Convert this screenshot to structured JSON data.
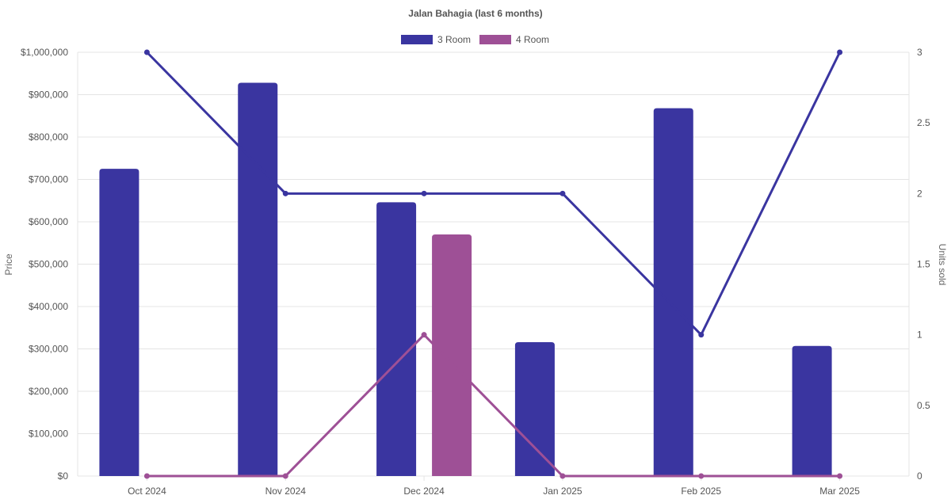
{
  "chart_data": {
    "type": "bar",
    "title": "Jalan Bahagia (last 6 months)",
    "categories": [
      "Oct 2024",
      "Nov 2024",
      "Dec 2024",
      "Jan 2025",
      "Feb 2025",
      "Mar 2025"
    ],
    "y_left": {
      "label": "Price",
      "range": [
        0,
        1000000
      ],
      "ticks": [
        {
          "value": 0,
          "label": "$0"
        },
        {
          "value": 100000,
          "label": "$100,000"
        },
        {
          "value": 200000,
          "label": "$200,000"
        },
        {
          "value": 300000,
          "label": "$300,000"
        },
        {
          "value": 400000,
          "label": "$400,000"
        },
        {
          "value": 500000,
          "label": "$500,000"
        },
        {
          "value": 600000,
          "label": "$600,000"
        },
        {
          "value": 700000,
          "label": "$700,000"
        },
        {
          "value": 800000,
          "label": "$800,000"
        },
        {
          "value": 900000,
          "label": "$900,000"
        },
        {
          "value": 1000000,
          "label": "$1,000,000"
        }
      ]
    },
    "y_right": {
      "label": "Units sold",
      "range": [
        0,
        3
      ],
      "ticks": [
        {
          "value": 0,
          "label": "0"
        },
        {
          "value": 0.5,
          "label": "0.5"
        },
        {
          "value": 1,
          "label": "1"
        },
        {
          "value": 1.5,
          "label": "1.5"
        },
        {
          "value": 2,
          "label": "2"
        },
        {
          "value": 2.5,
          "label": "2.5"
        },
        {
          "value": 3,
          "label": "3"
        }
      ]
    },
    "grid": true,
    "legend_position": "top-center",
    "series": [
      {
        "name": "3 Room",
        "color": "#3a35a0",
        "price": [
          725000,
          928000,
          646000,
          316000,
          868000,
          307000
        ],
        "units": [
          3,
          2,
          2,
          2,
          1,
          3
        ]
      },
      {
        "name": "4 Room",
        "color": "#9e5096",
        "price": [
          0,
          0,
          570000,
          0,
          0,
          0
        ],
        "units": [
          0,
          0,
          1,
          0,
          0,
          0
        ]
      }
    ]
  }
}
